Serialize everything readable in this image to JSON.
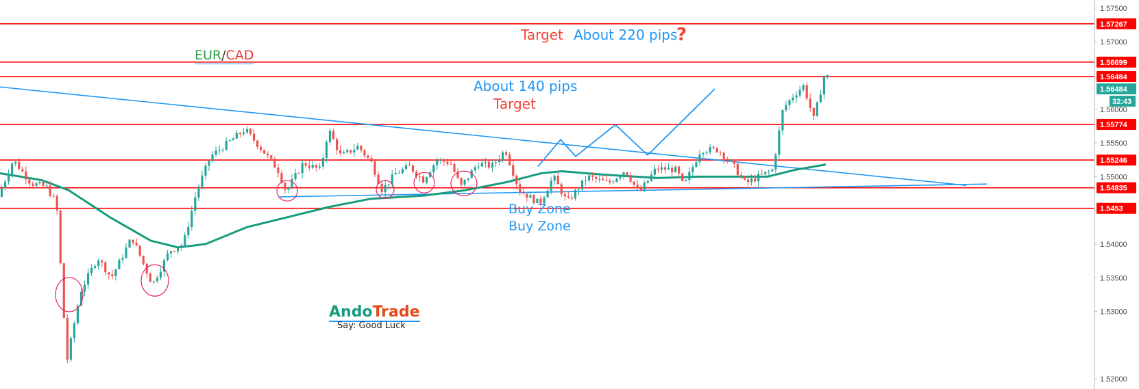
{
  "symbol": {
    "base": "EUR",
    "sep": "/",
    "quote": "CAD",
    "base_color": "#2e9e45",
    "quote_color": "#e53935"
  },
  "annotations": {
    "target_top": "Target",
    "pips_top": "About 220 pips",
    "question_mark": "?",
    "pips_mid": "About 140 pips",
    "target_mid": "Target",
    "buy_zone_1": "Buy Zone",
    "buy_zone_2": "Buy Zone"
  },
  "watermark": {
    "brand_a": "Ando",
    "brand_b": "Trade",
    "tagline": "Say: Good Luck"
  },
  "countdown": "32:43",
  "colors": {
    "bull": "#26a69a",
    "bear": "#ef5350",
    "level_line": "#ff0000",
    "trend_line": "#2196f3",
    "ma_line": "#169b7d",
    "circle": "#e91e63",
    "price_label_green": "#26a69a"
  },
  "chart_data": {
    "type": "candlestick",
    "symbol": "EUR/CAD",
    "ylim": [
      1.5185,
      1.5762
    ],
    "y_ticks": [
      1.52,
      1.53,
      1.535,
      1.54,
      1.545,
      1.55,
      1.555,
      1.56,
      1.57,
      1.575
    ],
    "y_tick_labels": [
      "1.52000",
      "1.53000",
      "1.53500",
      "1.54000",
      "1.54500",
      "1.55000",
      "1.55500",
      "1.56000",
      "1.57000",
      "1.57500"
    ],
    "levels": [
      {
        "value": 1.57267,
        "label": "1.57267"
      },
      {
        "value": 1.56699,
        "label": "1.56699"
      },
      {
        "value": 1.56484,
        "label": "1.56484"
      },
      {
        "value": 1.55774,
        "label": "1.55774"
      },
      {
        "value": 1.55246,
        "label": "1.55246"
      },
      {
        "value": 1.54835,
        "label": "1.54835"
      },
      {
        "value": 1.5453,
        "label": "1.5453"
      }
    ],
    "current_price": {
      "value": 1.56484,
      "label": "1.56484"
    },
    "price_path": [
      [
        0,
        1.547
      ],
      [
        22,
        1.5525
      ],
      [
        48,
        1.549
      ],
      [
        70,
        1.5485
      ],
      [
        85,
        1.546
      ],
      [
        100,
        1.5225
      ],
      [
        120,
        1.533
      ],
      [
        145,
        1.538
      ],
      [
        165,
        1.535
      ],
      [
        195,
        1.541
      ],
      [
        225,
        1.534
      ],
      [
        250,
        1.539
      ],
      [
        270,
        1.54
      ],
      [
        290,
        1.548
      ],
      [
        310,
        1.553
      ],
      [
        335,
        1.555
      ],
      [
        360,
        1.557
      ],
      [
        385,
        1.554
      ],
      [
        408,
        1.551
      ],
      [
        420,
        1.5478
      ],
      [
        445,
        1.552
      ],
      [
        470,
        1.551
      ],
      [
        482,
        1.557
      ],
      [
        500,
        1.553
      ],
      [
        525,
        1.5545
      ],
      [
        545,
        1.552
      ],
      [
        560,
        1.548
      ],
      [
        580,
        1.5505
      ],
      [
        600,
        1.5515
      ],
      [
        620,
        1.5495
      ],
      [
        640,
        1.5525
      ],
      [
        660,
        1.552
      ],
      [
        675,
        1.5485
      ],
      [
        700,
        1.552
      ],
      [
        720,
        1.5515
      ],
      [
        740,
        1.554
      ],
      [
        760,
        1.548
      ],
      [
        790,
        1.546
      ],
      [
        810,
        1.55
      ],
      [
        830,
        1.5462
      ],
      [
        860,
        1.55
      ],
      [
        890,
        1.549
      ],
      [
        915,
        1.551
      ],
      [
        935,
        1.5475
      ],
      [
        960,
        1.5512
      ],
      [
        990,
        1.551
      ],
      [
        1000,
        1.5485
      ],
      [
        1025,
        1.554
      ],
      [
        1050,
        1.554
      ],
      [
        1070,
        1.552
      ],
      [
        1090,
        1.549
      ],
      [
        1110,
        1.55
      ],
      [
        1130,
        1.551
      ],
      [
        1145,
        1.56
      ],
      [
        1160,
        1.562
      ],
      [
        1175,
        1.5635
      ],
      [
        1190,
        1.5585
      ],
      [
        1205,
        1.5648
      ]
    ],
    "moving_average": [
      [
        0,
        1.5505
      ],
      [
        60,
        1.5495
      ],
      [
        100,
        1.548
      ],
      [
        160,
        1.544
      ],
      [
        220,
        1.5405
      ],
      [
        260,
        1.5395
      ],
      [
        300,
        1.54
      ],
      [
        360,
        1.5425
      ],
      [
        420,
        1.544
      ],
      [
        480,
        1.5455
      ],
      [
        540,
        1.5467
      ],
      [
        620,
        1.5472
      ],
      [
        680,
        1.548
      ],
      [
        740,
        1.5492
      ],
      [
        790,
        1.5505
      ],
      [
        820,
        1.5508
      ],
      [
        880,
        1.5503
      ],
      [
        960,
        1.5498
      ],
      [
        1020,
        1.55
      ],
      [
        1080,
        1.55
      ],
      [
        1120,
        1.55
      ],
      [
        1160,
        1.551
      ],
      [
        1205,
        1.5518
      ]
    ],
    "trendlines": [
      {
        "from": [
          0,
          1.5633
        ],
        "to": [
          1410,
          1.5487
        ]
      },
      {
        "from": [
          408,
          1.547
        ],
        "to": [
          1440,
          1.5489
        ]
      }
    ],
    "projection_path": [
      [
        785,
        1.5515
      ],
      [
        818,
        1.5555
      ],
      [
        840,
        1.553
      ],
      [
        898,
        1.5577
      ],
      [
        945,
        1.5532
      ],
      [
        1043,
        1.563
      ]
    ],
    "circles": [
      {
        "cx": 101,
        "cy": 1.5325,
        "rx": 20,
        "ry": 25
      },
      {
        "cx": 226,
        "cy": 1.5346,
        "rx": 20,
        "ry": 23
      },
      {
        "cx": 419,
        "cy": 1.5479,
        "rx": 15,
        "ry": 15
      },
      {
        "cx": 562,
        "cy": 1.5481,
        "rx": 13,
        "ry": 13
      },
      {
        "cx": 619,
        "cy": 1.5491,
        "rx": 15,
        "ry": 15
      },
      {
        "cx": 677,
        "cy": 1.549,
        "rx": 19,
        "ry": 18
      }
    ],
    "x_range": [
      0,
      1210
    ],
    "candle_count": 240
  }
}
